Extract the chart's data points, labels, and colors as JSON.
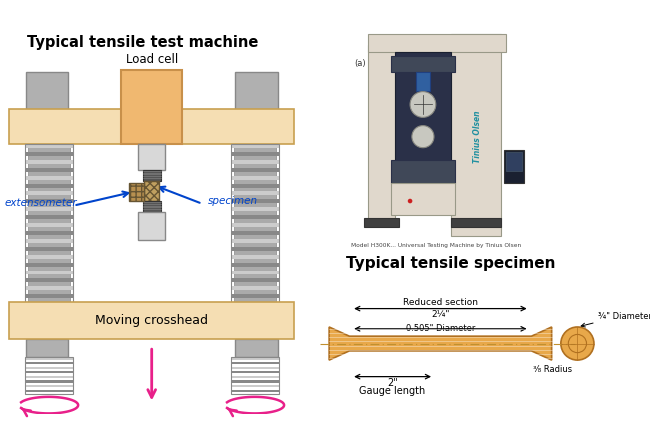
{
  "bg_color": "#ffffff",
  "left_title": "Typical tensile test machine",
  "right_title": "Typical tensile specimen",
  "load_cell_label": "Load cell",
  "extensometer_label": "extensometer",
  "specimen_label": "specimen",
  "moving_crosshead_label": "Moving crosshead",
  "photo_caption": "Model H300K... Universal Testing Machine by Tinius Olsen",
  "tinius_label": "Tinius Olsen",
  "label_a": "(a)",
  "reduced_section": "Reduced section",
  "reduced_dim": "2¼\"",
  "diameter_label": "0.505\" Diameter",
  "diameter_right": "¾\" Diameter",
  "gauge_label": "Gauge length",
  "gauge_dim": "2\"",
  "radius_label": "¾ Radius",
  "radius_frac": "3",
  "radius_frac2": "8",
  "colors": {
    "crosshead_fill": "#f5deb3",
    "crosshead_edge": "#c8a050",
    "load_cell_fill": "#f0b870",
    "load_cell_edge": "#c8904a",
    "column_fill": "#b0b0b0",
    "column_edge": "#888888",
    "screw_light": "#cccccc",
    "screw_dark": "#888888",
    "shaft_fill": "#d8d8d8",
    "shaft_edge": "#888888",
    "specimen_hatch_fill": "#c0a060",
    "extensometer_fill": "#b89050",
    "arrow_pink": "#e8208a",
    "label_blue": "#0044cc",
    "text_black": "#000000",
    "specimen_body": "#e8a84a",
    "specimen_edge": "#b07020",
    "specimen_center_line": "#c09030",
    "photo_frame": "#d0d0d0",
    "machine_body": "#d8d0c0",
    "machine_dark": "#303850",
    "machine_frame": "#2a2a2a"
  }
}
